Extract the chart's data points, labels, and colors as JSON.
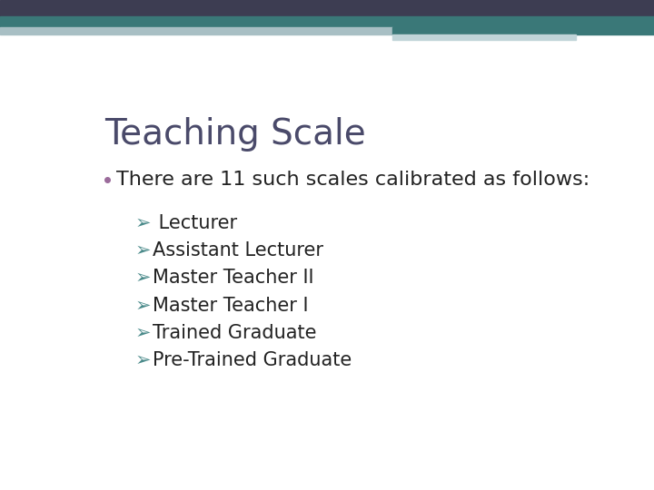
{
  "title": "Teaching Scale",
  "title_color": "#4a4a6a",
  "title_fontsize": 28,
  "bullet_text": "There are 11 such scales calibrated as follows:",
  "bullet_color": "#222222",
  "bullet_fontsize": 16,
  "bullet_marker_color": "#9b6b9b",
  "sub_items": [
    " Lecturer",
    "Assistant Lecturer",
    "Master Teacher II",
    "Master Teacher I",
    "Trained Graduate",
    "Pre-Trained Graduate"
  ],
  "sub_item_fontsize": 15,
  "sub_item_color": "#222222",
  "arrow_color": "#4a8a8a",
  "header_dark_color": "#3d3d52",
  "header_teal_color": "#3a7878",
  "header_light_color": "#a8bfc4",
  "header_lighter_color": "#c0d4d8",
  "bg_color": "#ffffff"
}
